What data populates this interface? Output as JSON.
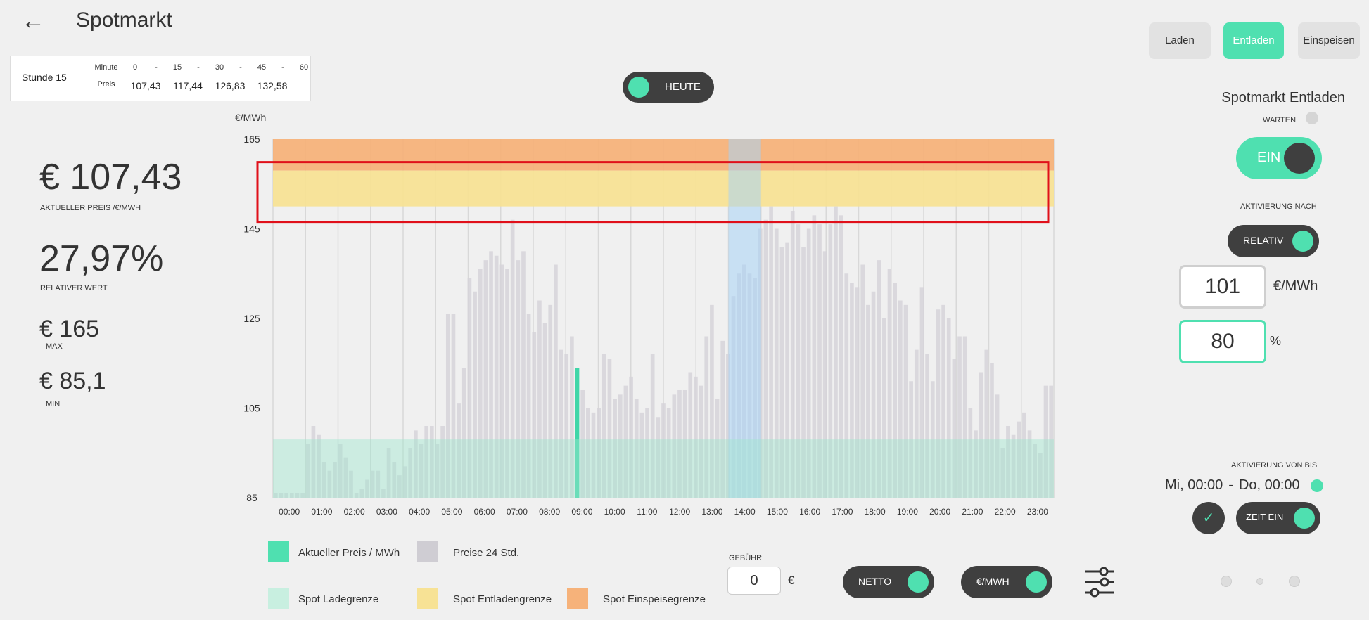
{
  "header": {
    "title": "Spotmarkt",
    "back_icon": "arrow-left-icon"
  },
  "hour_box": {
    "label": "Stunde 15",
    "minute_label": "Minute",
    "minutes": [
      "0",
      "-",
      "15",
      "-",
      "30",
      "-",
      "45",
      "-",
      "60"
    ],
    "price_label": "Preis",
    "prices": [
      "107,43",
      "117,44",
      "126,83",
      "132,58"
    ]
  },
  "toggle_heute": {
    "label": "HEUTE",
    "on": true
  },
  "stats": {
    "current_price": "€ 107,43",
    "current_price_label": "AKTUELLER PREIS /€/MWh",
    "relative_value": "27,97%",
    "relative_label": "RELATIVER WERT",
    "max_value": "€ 165",
    "max_label": "MAX",
    "min_value": "€ 85,1",
    "min_label": "MIN"
  },
  "tabs": [
    {
      "label": "Laden",
      "active": false
    },
    {
      "label": "Entladen",
      "active": true
    },
    {
      "label": "Einspeisen",
      "active": false
    }
  ],
  "right_panel": {
    "title": "Spotmarkt Entladen",
    "warten_label": "WARTEN",
    "ein_label": "EIN",
    "aktivierung_nach_label": "AKTIVIERUNG NACH",
    "relativ_label": "RELATIV",
    "value_box": "101",
    "value_unit": "€/MWh",
    "percent_box": "80",
    "percent_unit": "%",
    "aktivierung_von_bis_label": "AKTIVIERUNG VON BIS",
    "time_from": "Mi, 00:00",
    "time_sep": "-",
    "time_to": "Do, 00:00",
    "zeit_ein_label": "ZEIT EIN",
    "check_icon": "check-icon"
  },
  "legend": [
    {
      "label": "Aktueller Preis /   MWh",
      "color": "#4fe0b0"
    },
    {
      "label": "Preise 24 Std.",
      "color": "#cfcdd3"
    },
    {
      "label": "Spot Ladegrenze",
      "color": "#c8efe0"
    },
    {
      "label": "Spot Entladengrenze",
      "color": "#f7e295"
    },
    {
      "label": "Spot Einspeisegrenze",
      "color": "#f6b27a"
    }
  ],
  "fee": {
    "label": "GEBÜHR",
    "value": "0",
    "unit": "€"
  },
  "bottom_toggles": {
    "netto": "NETTO",
    "unit": "€/MWH",
    "sliders_icon": "sliders-icon"
  },
  "colors": {
    "accent": "#4fe0b0",
    "dark": "#3f3f3f",
    "highlight_box": "#e0101a"
  },
  "chart_data": {
    "type": "bar",
    "ylabel": "€/MWh",
    "ylim": [
      85,
      165
    ],
    "yticks": [
      165,
      145,
      125,
      105,
      85
    ],
    "xticks": [
      "00:00",
      "01:00",
      "02:00",
      "03:00",
      "04:00",
      "05:00",
      "06:00",
      "07:00",
      "08:00",
      "09:00",
      "10:00",
      "11:00",
      "12:00",
      "13:00",
      "14:00",
      "15:00",
      "16:00",
      "17:00",
      "18:00",
      "19:00",
      "20:00",
      "21:00",
      "22:00",
      "23:00"
    ],
    "current_interval": 56,
    "current_hour_highlight": 14,
    "current_price": 107.43,
    "zones": {
      "ladegrenze": [
        85,
        98
      ],
      "entladegrenze": [
        150,
        158
      ],
      "einspeisegrenze": [
        158,
        165
      ]
    },
    "values": [
      86.0,
      86.0,
      86.0,
      86.0,
      86.0,
      86.0,
      97,
      101,
      99,
      93,
      91,
      93,
      97,
      94,
      91,
      86,
      87,
      89,
      91,
      91,
      87,
      96,
      93,
      90,
      92,
      96,
      100,
      97,
      101,
      101,
      97,
      101,
      126,
      126,
      106,
      114,
      134,
      131,
      136,
      138,
      140,
      139,
      137,
      136,
      147,
      138,
      140,
      126,
      122,
      129,
      124,
      128,
      137,
      118,
      117,
      121,
      114,
      109,
      105,
      104,
      105,
      117,
      116,
      107,
      108,
      110,
      112,
      107,
      104,
      105,
      117,
      103,
      106,
      105,
      108,
      109,
      109,
      113,
      112,
      110,
      121,
      128,
      107,
      120,
      117,
      130,
      135,
      137,
      135,
      134,
      145,
      147,
      150,
      145,
      141,
      142,
      149,
      146,
      141,
      145,
      148,
      146,
      140,
      146,
      150,
      148,
      135,
      133,
      132,
      137,
      128,
      131,
      138,
      125,
      136,
      133,
      129,
      128,
      111,
      118,
      132,
      117,
      111,
      127,
      128,
      125,
      116,
      121,
      121,
      105,
      100,
      113,
      118,
      115,
      108,
      96,
      101,
      99,
      102,
      104,
      100,
      97,
      95,
      110,
      110
    ]
  }
}
